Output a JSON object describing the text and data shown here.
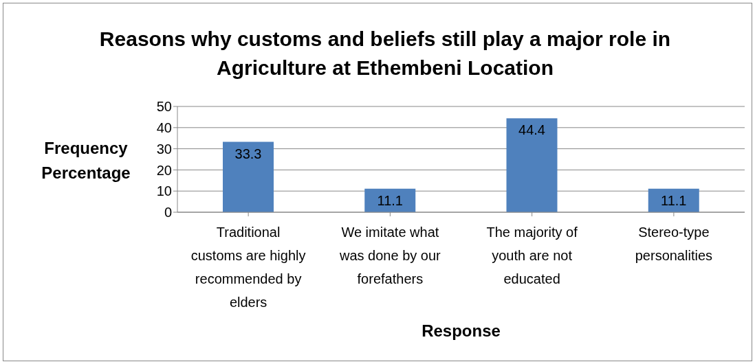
{
  "chart_data": {
    "type": "bar",
    "title": "Reasons why customs and beliefs still play a major role in Agriculture at Ethembeni Location",
    "xlabel": "Response",
    "ylabel": "Frequency Percentage",
    "categories": [
      "Traditional customs are highly recommended by elders",
      "We imitate what was done by our forefathers",
      "The majority of youth are not educated",
      "Stereo-type personalities"
    ],
    "values": [
      33.3,
      11.1,
      44.4,
      11.1
    ],
    "color": "#4f81bd",
    "ylim": [
      0,
      50
    ],
    "yticks": [
      0,
      10,
      20,
      30,
      40,
      50
    ],
    "grid": "y",
    "data_labels": true
  }
}
